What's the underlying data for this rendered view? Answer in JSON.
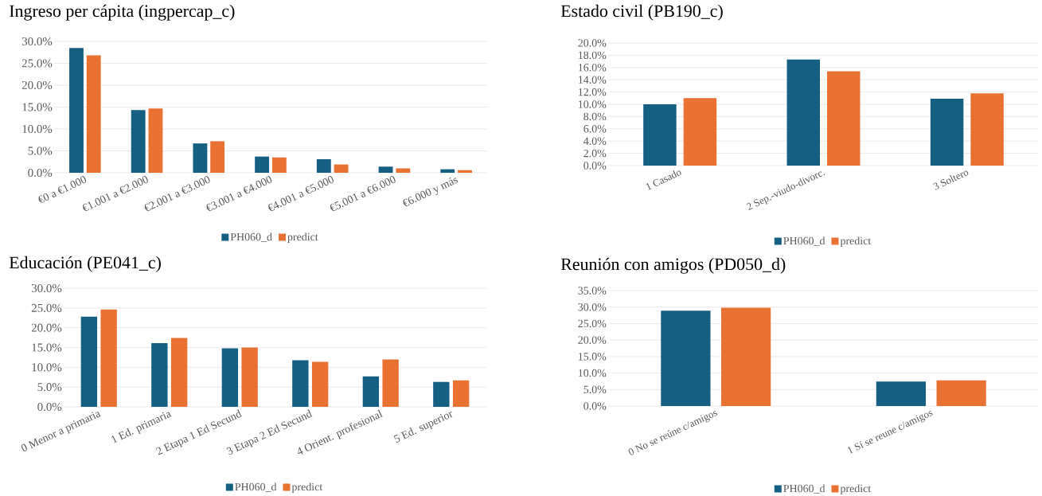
{
  "chart_data": [
    {
      "type": "bar",
      "title": "Ingreso per cápita (ingpercap_c)",
      "categories": [
        "€0 a €1.000",
        "€1.001 a €2.000",
        "€2.001 a €3.000",
        "€3.001 a €4.000",
        "€4.001 a €5.000",
        "€5.001 a €6.000",
        "€6.000 y más"
      ],
      "series": [
        {
          "name": "PH060_d",
          "color": "#156082",
          "values": [
            28.5,
            14.3,
            6.7,
            3.7,
            3.1,
            1.4,
            0.8
          ]
        },
        {
          "name": "predict",
          "color": "#e97132",
          "values": [
            26.8,
            14.7,
            7.2,
            3.5,
            1.9,
            1.0,
            0.6
          ]
        }
      ],
      "ylim": [
        0,
        30
      ],
      "yticks": [
        {
          "value": 0,
          "label": "0.0%"
        },
        {
          "value": 5,
          "label": "5.0%"
        },
        {
          "value": 10,
          "label": "10.0%"
        },
        {
          "value": 15,
          "label": "15.0%"
        },
        {
          "value": 20,
          "label": "20.0%"
        },
        {
          "value": 25,
          "label": "25.0%"
        },
        {
          "value": 30,
          "label": "30.0%"
        }
      ],
      "grid": "y",
      "legend": "bottom"
    },
    {
      "type": "bar",
      "title": "Estado civil (PB190_c)",
      "categories": [
        "1 Casado",
        "2 Sep.-viudo-divorc.",
        "3 Soltero"
      ],
      "series": [
        {
          "name": "PH060_d",
          "color": "#156082",
          "values": [
            10.0,
            17.3,
            10.9
          ]
        },
        {
          "name": "predict",
          "color": "#e97132",
          "values": [
            11.0,
            15.4,
            11.8
          ]
        }
      ],
      "ylim": [
        0,
        20
      ],
      "yticks": [
        {
          "value": 0,
          "label": "0.0%"
        },
        {
          "value": 2,
          "label": "2.0%"
        },
        {
          "value": 4,
          "label": "4.0%"
        },
        {
          "value": 6,
          "label": "6.0%"
        },
        {
          "value": 8,
          "label": "8.0%"
        },
        {
          "value": 10,
          "label": "10.0%"
        },
        {
          "value": 12,
          "label": "12.0%"
        },
        {
          "value": 14,
          "label": "14.0%"
        },
        {
          "value": 16,
          "label": "16.0%"
        },
        {
          "value": 18,
          "label": "18.0%"
        },
        {
          "value": 20,
          "label": "20.0%"
        }
      ],
      "grid": "y",
      "legend": "bottom"
    },
    {
      "type": "bar",
      "title": "Educación (PE041_c)",
      "categories": [
        "0 Menor a primaria",
        "1 Ed. primaria",
        "2 Etapa 1 Ed Secund",
        "3 Etapa 2 Ed Secund",
        "4 Orient. profesional",
        "5 Ed. superior"
      ],
      "series": [
        {
          "name": "PH060_d",
          "color": "#156082",
          "values": [
            22.8,
            16.1,
            14.8,
            11.8,
            7.7,
            6.3
          ]
        },
        {
          "name": "predict",
          "color": "#e97132",
          "values": [
            24.6,
            17.4,
            15.0,
            11.4,
            12.0,
            6.7
          ]
        }
      ],
      "ylim": [
        0,
        30
      ],
      "yticks": [
        {
          "value": 0,
          "label": "0.0%"
        },
        {
          "value": 5,
          "label": "5.0%"
        },
        {
          "value": 10,
          "label": "10.0%"
        },
        {
          "value": 15,
          "label": "15.0%"
        },
        {
          "value": 20,
          "label": "20.0%"
        },
        {
          "value": 25,
          "label": "25.0%"
        },
        {
          "value": 30,
          "label": "30.0%"
        }
      ],
      "grid": "y",
      "legend": "bottom"
    },
    {
      "type": "bar",
      "title": "Reunión con amigos (PD050_d)",
      "categories": [
        "0 No se reúne c/amigos",
        "1 Sí se reune c/amigos"
      ],
      "series": [
        {
          "name": "PH060_d",
          "color": "#156082",
          "values": [
            28.9,
            7.4
          ]
        },
        {
          "name": "predict",
          "color": "#e97132",
          "values": [
            29.8,
            7.8
          ]
        }
      ],
      "ylim": [
        0,
        35
      ],
      "yticks": [
        {
          "value": 0,
          "label": "0.0%"
        },
        {
          "value": 5,
          "label": "5.0%"
        },
        {
          "value": 10,
          "label": "10.0%"
        },
        {
          "value": 15,
          "label": "15.0%"
        },
        {
          "value": 20,
          "label": "20.0%"
        },
        {
          "value": 25,
          "label": "25.0%"
        },
        {
          "value": 30,
          "label": "30.0%"
        },
        {
          "value": 35,
          "label": "35.0%"
        }
      ],
      "grid": "y",
      "legend": "bottom"
    }
  ]
}
